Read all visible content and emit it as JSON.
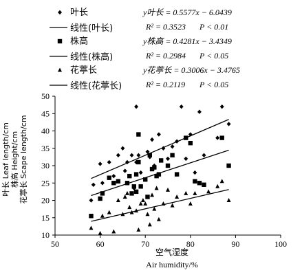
{
  "chart_data": {
    "type": "scatter",
    "xlabel": "空气湿度",
    "xlabel_en": "Air humidity/%",
    "ylabel_lines": [
      "叶长 Leaf length/cm",
      "株高 Height/cm",
      "花葶长 Scape length/cm"
    ],
    "xlim": [
      50,
      100
    ],
    "ylim": [
      10,
      50
    ],
    "x_ticks": [
      "50",
      "60",
      "70",
      "80",
      "90",
      "100"
    ],
    "y_ticks": [
      "10",
      "15",
      "20",
      "25",
      "30",
      "35",
      "40",
      "45",
      "50"
    ],
    "grid": false,
    "legend_position": "top",
    "series": [
      {
        "name": "叶长",
        "marker": "diamond",
        "points": [
          [
            58,
            20
          ],
          [
            58.5,
            24.5
          ],
          [
            60,
            30.5
          ],
          [
            60.5,
            25
          ],
          [
            62,
            31
          ],
          [
            63,
            27
          ],
          [
            64,
            33
          ],
          [
            65,
            35
          ],
          [
            65.5,
            28.5
          ],
          [
            66,
            31
          ],
          [
            67,
            33
          ],
          [
            67.5,
            23.5
          ],
          [
            68,
            47
          ],
          [
            68,
            31
          ],
          [
            68.5,
            33
          ],
          [
            69,
            28
          ],
          [
            70,
            26
          ],
          [
            70.5,
            34
          ],
          [
            71,
            32.5
          ],
          [
            71.5,
            37.5
          ],
          [
            72,
            30
          ],
          [
            73,
            39
          ],
          [
            74,
            35
          ],
          [
            75,
            32
          ],
          [
            76,
            35.5
          ],
          [
            77,
            37
          ],
          [
            78,
            47
          ],
          [
            79,
            32
          ],
          [
            80,
            39
          ],
          [
            81,
            28
          ],
          [
            82,
            45.5
          ],
          [
            83,
            33
          ],
          [
            86,
            38
          ],
          [
            87,
            47
          ],
          [
            88.5,
            42
          ]
        ],
        "fit_label": "线性(叶长)",
        "equation": "y叶长 = 0.5577x − 6.0439",
        "r2": "R² = 0.3523",
        "p": "P < 0.01",
        "slope": 0.5577,
        "intercept": -6.0439
      },
      {
        "name": "株高",
        "marker": "square",
        "points": [
          [
            58,
            15.5
          ],
          [
            60,
            20.5
          ],
          [
            60.5,
            22
          ],
          [
            62,
            26.5
          ],
          [
            63,
            25
          ],
          [
            64,
            25.5
          ],
          [
            66,
            25
          ],
          [
            66.5,
            27
          ],
          [
            67,
            22
          ],
          [
            67.5,
            24
          ],
          [
            68,
            27.5
          ],
          [
            68,
            22.5
          ],
          [
            68.5,
            39
          ],
          [
            68.5,
            31
          ],
          [
            69,
            24
          ],
          [
            70,
            26
          ],
          [
            70.5,
            21
          ],
          [
            71,
            33
          ],
          [
            71.5,
            29
          ],
          [
            72,
            29.5
          ],
          [
            72.5,
            27
          ],
          [
            73,
            27.5
          ],
          [
            73.5,
            31.5
          ],
          [
            75,
            30
          ],
          [
            76,
            33
          ],
          [
            77,
            27.5
          ],
          [
            79,
            38
          ],
          [
            80,
            36.5
          ],
          [
            81,
            25.5
          ],
          [
            82,
            25
          ],
          [
            83,
            24.5
          ],
          [
            87,
            38
          ],
          [
            88.5,
            30
          ]
        ],
        "fit_label": "线性(株高)",
        "equation": "y株高 = 0.4281x − 3.4349",
        "r2": "R² = 0.2984",
        "p": "P < 0.05",
        "slope": 0.4281,
        "intercept": -3.4349
      },
      {
        "name": "花葶长",
        "marker": "triangle",
        "points": [
          [
            58,
            12
          ],
          [
            60,
            10.5
          ],
          [
            60.5,
            15.5
          ],
          [
            62,
            16.5
          ],
          [
            63,
            11
          ],
          [
            64,
            20
          ],
          [
            65,
            16
          ],
          [
            65.5,
            21
          ],
          [
            66,
            22
          ],
          [
            66.5,
            18
          ],
          [
            67,
            16.5
          ],
          [
            68,
            17
          ],
          [
            68.5,
            11.5
          ],
          [
            69,
            19
          ],
          [
            69.5,
            20
          ],
          [
            70,
            19
          ],
          [
            70.5,
            16
          ],
          [
            71,
            13
          ],
          [
            71.5,
            21.5
          ],
          [
            72,
            17.5
          ],
          [
            72.5,
            23.5
          ],
          [
            73,
            14.5
          ],
          [
            74,
            19
          ],
          [
            75,
            23
          ],
          [
            76,
            18.5
          ],
          [
            77,
            21
          ],
          [
            79,
            22
          ],
          [
            80,
            19
          ],
          [
            81,
            22
          ],
          [
            84,
            22.5
          ],
          [
            86,
            24
          ],
          [
            87,
            25.5
          ],
          [
            88.5,
            20
          ]
        ],
        "fit_label": "线性(花葶长)",
        "equation": "y花葶长 = 0.3006x − 3.4765",
        "r2": "R² = 0.2119",
        "p": "P < 0.05",
        "slope": 0.3006,
        "intercept": -3.4765
      }
    ]
  }
}
